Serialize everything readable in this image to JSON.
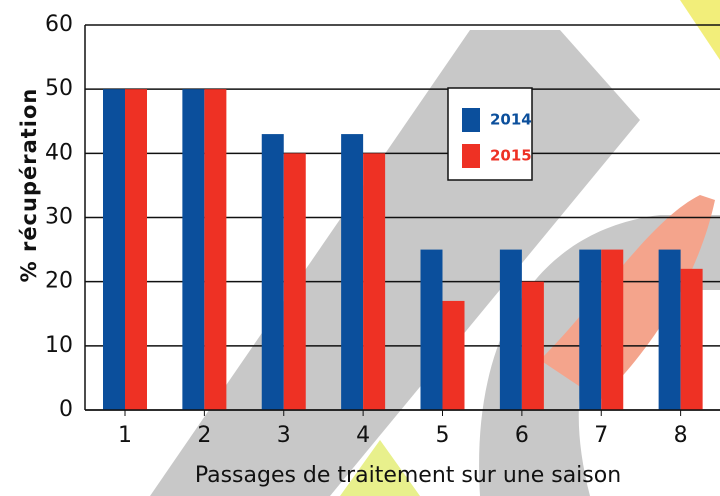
{
  "chart_data": {
    "type": "bar",
    "x_label": "Passages de traitement sur une saison",
    "y_label": "% récupération",
    "categories": [
      "1",
      "2",
      "3",
      "4",
      "5",
      "6",
      "7",
      "8"
    ],
    "series": [
      {
        "name": "2014",
        "color": "#0b4f9c",
        "values": [
          50,
          50,
          43,
          43,
          25,
          25,
          25,
          25
        ]
      },
      {
        "name": "2015",
        "color": "#ee3124",
        "values": [
          50,
          50,
          40,
          40,
          17,
          20,
          25,
          22
        ]
      }
    ],
    "ylim": [
      0,
      60
    ],
    "yticks": [
      0,
      10,
      20,
      30,
      40,
      50,
      60
    ],
    "grid": true
  }
}
